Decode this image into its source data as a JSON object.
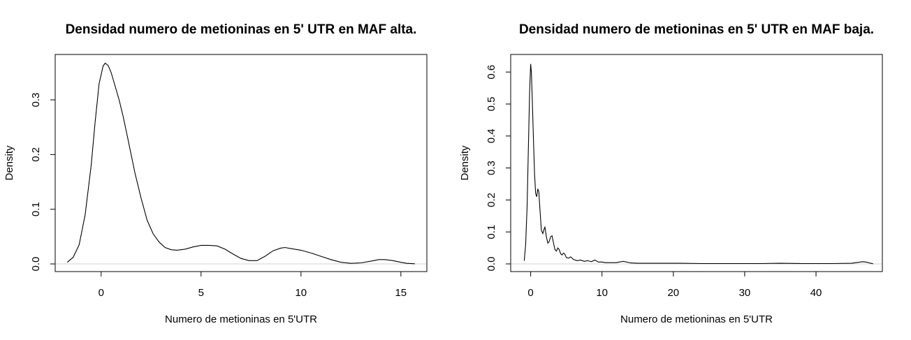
{
  "chart_data": [
    {
      "type": "line",
      "title": "Densidad numero de metioninas en 5' UTR en MAF alta.",
      "xlabel": "Numero de metioninas en 5'UTR",
      "ylabel": "Density",
      "xlim": [
        -2.3,
        16.3
      ],
      "ylim": [
        -0.014,
        0.383
      ],
      "xticks": [
        0,
        5,
        10,
        15
      ],
      "yticks": [
        0.0,
        0.1,
        0.2,
        0.3
      ],
      "xtick_labels": [
        "0",
        "5",
        "10",
        "15"
      ],
      "ytick_labels": [
        "0.0",
        "0.1",
        "0.2",
        "0.3"
      ],
      "grid": false,
      "series": [
        {
          "x": [
            -1.7,
            -1.4,
            -1.1,
            -0.8,
            -0.5,
            -0.3,
            -0.1,
            0.1,
            0.2,
            0.35,
            0.5,
            0.7,
            0.9,
            1.1,
            1.3,
            1.5,
            1.7,
            2.0,
            2.3,
            2.6,
            2.9,
            3.2,
            3.5,
            3.8,
            4.2,
            4.6,
            5.0,
            5.4,
            5.8,
            6.2,
            6.6,
            7.0,
            7.4,
            7.8,
            8.2,
            8.6,
            9.0,
            9.2,
            9.5,
            10.0,
            10.5,
            11.0,
            11.5,
            12.0,
            12.5,
            13.0,
            13.5,
            13.9,
            14.2,
            14.6,
            15.0,
            15.3,
            15.7
          ],
          "y": [
            0.003,
            0.012,
            0.035,
            0.09,
            0.18,
            0.26,
            0.33,
            0.362,
            0.367,
            0.363,
            0.35,
            0.325,
            0.3,
            0.27,
            0.235,
            0.2,
            0.165,
            0.12,
            0.08,
            0.055,
            0.04,
            0.03,
            0.026,
            0.025,
            0.027,
            0.031,
            0.034,
            0.034,
            0.033,
            0.027,
            0.018,
            0.01,
            0.006,
            0.006,
            0.014,
            0.024,
            0.029,
            0.03,
            0.028,
            0.025,
            0.02,
            0.014,
            0.008,
            0.003,
            0.001,
            0.002,
            0.005,
            0.008,
            0.008,
            0.006,
            0.003,
            0.001,
            0.0003
          ]
        }
      ]
    },
    {
      "type": "line",
      "title": "Densidad numero de metioninas en 5' UTR en MAF baja.",
      "xlabel": "Numero de metioninas en 5'UTR",
      "ylabel": "Density",
      "xlim": [
        -2.8,
        49.3
      ],
      "ylim": [
        -0.024,
        0.655
      ],
      "xticks": [
        0,
        10,
        20,
        30,
        40
      ],
      "yticks": [
        0.0,
        0.1,
        0.2,
        0.3,
        0.4,
        0.5,
        0.6
      ],
      "xtick_labels": [
        "0",
        "10",
        "20",
        "30",
        "40"
      ],
      "ytick_labels": [
        "0.0",
        "0.1",
        "0.2",
        "0.3",
        "0.4",
        "0.5",
        "0.6"
      ],
      "grid": false,
      "series": [
        {
          "x": [
            -0.9,
            -0.7,
            -0.5,
            -0.3,
            -0.15,
            0.0,
            0.1,
            0.25,
            0.4,
            0.55,
            0.7,
            0.85,
            1.0,
            1.15,
            1.3,
            1.5,
            1.7,
            1.9,
            2.0,
            2.2,
            2.4,
            2.6,
            2.8,
            3.0,
            3.2,
            3.4,
            3.6,
            3.8,
            4.0,
            4.2,
            4.4,
            4.6,
            4.8,
            5.0,
            5.3,
            5.6,
            6.0,
            6.5,
            7.0,
            7.5,
            8.0,
            8.5,
            9.0,
            9.5,
            10.0,
            10.5,
            11.0,
            12.0,
            13.0,
            14.0,
            15.0,
            17.0,
            19.0,
            21.0,
            24.0,
            28.0,
            32.0,
            35.0,
            38.0,
            42.0,
            45.0,
            46.0,
            46.5,
            47.0,
            47.5,
            48.0
          ],
          "y": [
            0.01,
            0.06,
            0.18,
            0.38,
            0.54,
            0.625,
            0.6,
            0.5,
            0.38,
            0.28,
            0.22,
            0.21,
            0.235,
            0.225,
            0.17,
            0.105,
            0.095,
            0.11,
            0.115,
            0.085,
            0.065,
            0.07,
            0.085,
            0.088,
            0.065,
            0.045,
            0.04,
            0.05,
            0.045,
            0.032,
            0.028,
            0.034,
            0.03,
            0.02,
            0.018,
            0.022,
            0.014,
            0.01,
            0.012,
            0.008,
            0.01,
            0.007,
            0.012,
            0.006,
            0.006,
            0.004,
            0.004,
            0.004,
            0.008,
            0.003,
            0.002,
            0.002,
            0.002,
            0.002,
            0.001,
            0.001,
            0.001,
            0.002,
            0.001,
            0.001,
            0.002,
            0.005,
            0.007,
            0.006,
            0.003,
            0.0005
          ]
        }
      ]
    }
  ]
}
